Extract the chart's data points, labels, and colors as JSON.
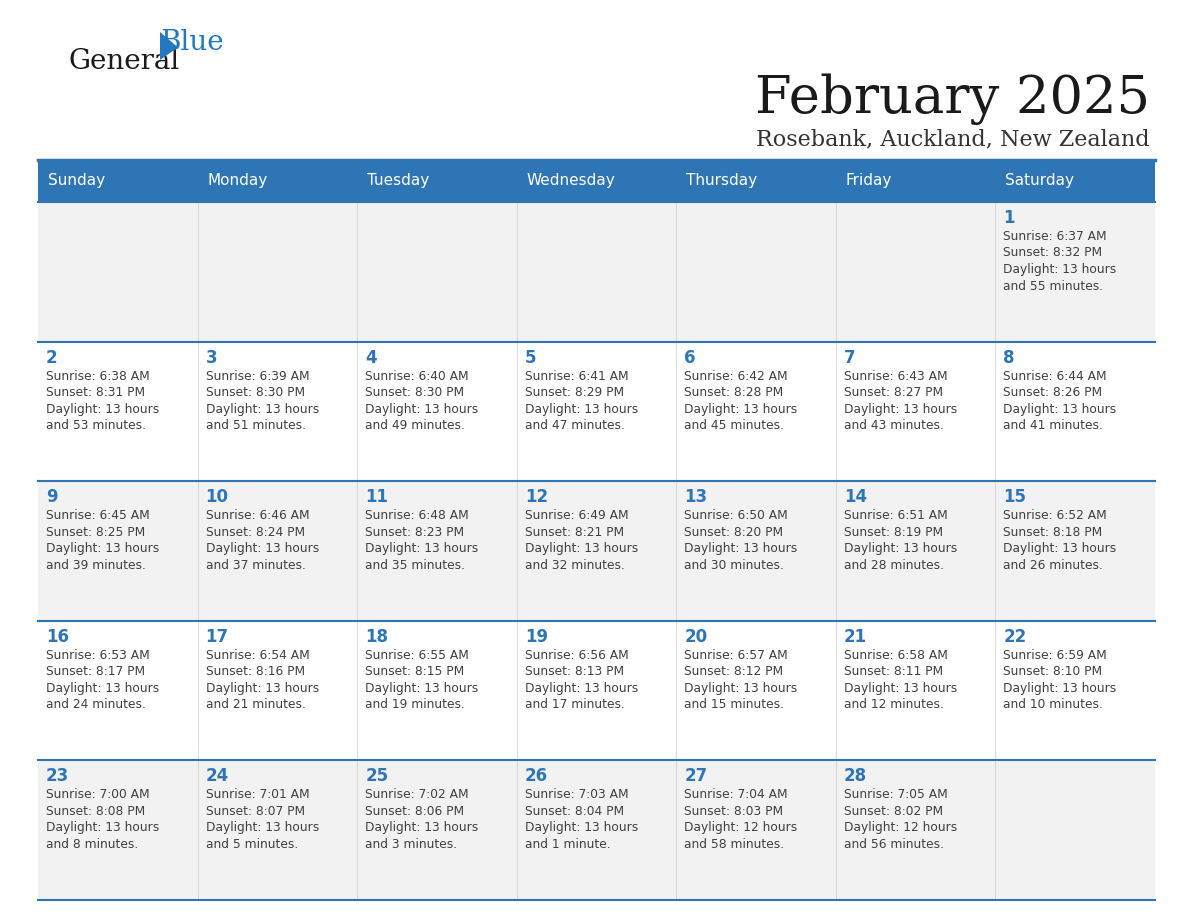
{
  "title": "February 2025",
  "subtitle": "Rosebank, Auckland, New Zealand",
  "header_bg": "#2E75B6",
  "header_text_color": "#FFFFFF",
  "cell_bg_odd": "#F2F2F2",
  "cell_bg_even": "#FFFFFF",
  "day_number_color": "#2E75B6",
  "text_color": "#404040",
  "line_color": "#2E75B6",
  "days_of_week": [
    "Sunday",
    "Monday",
    "Tuesday",
    "Wednesday",
    "Thursday",
    "Friday",
    "Saturday"
  ],
  "weeks": [
    [
      {
        "day": null,
        "sunrise": null,
        "sunset": null,
        "daylight_line1": null,
        "daylight_line2": null
      },
      {
        "day": null,
        "sunrise": null,
        "sunset": null,
        "daylight_line1": null,
        "daylight_line2": null
      },
      {
        "day": null,
        "sunrise": null,
        "sunset": null,
        "daylight_line1": null,
        "daylight_line2": null
      },
      {
        "day": null,
        "sunrise": null,
        "sunset": null,
        "daylight_line1": null,
        "daylight_line2": null
      },
      {
        "day": null,
        "sunrise": null,
        "sunset": null,
        "daylight_line1": null,
        "daylight_line2": null
      },
      {
        "day": null,
        "sunrise": null,
        "sunset": null,
        "daylight_line1": null,
        "daylight_line2": null
      },
      {
        "day": 1,
        "sunrise": "6:37 AM",
        "sunset": "8:32 PM",
        "daylight_line1": "Daylight: 13 hours",
        "daylight_line2": "and 55 minutes."
      }
    ],
    [
      {
        "day": 2,
        "sunrise": "6:38 AM",
        "sunset": "8:31 PM",
        "daylight_line1": "Daylight: 13 hours",
        "daylight_line2": "and 53 minutes."
      },
      {
        "day": 3,
        "sunrise": "6:39 AM",
        "sunset": "8:30 PM",
        "daylight_line1": "Daylight: 13 hours",
        "daylight_line2": "and 51 minutes."
      },
      {
        "day": 4,
        "sunrise": "6:40 AM",
        "sunset": "8:30 PM",
        "daylight_line1": "Daylight: 13 hours",
        "daylight_line2": "and 49 minutes."
      },
      {
        "day": 5,
        "sunrise": "6:41 AM",
        "sunset": "8:29 PM",
        "daylight_line1": "Daylight: 13 hours",
        "daylight_line2": "and 47 minutes."
      },
      {
        "day": 6,
        "sunrise": "6:42 AM",
        "sunset": "8:28 PM",
        "daylight_line1": "Daylight: 13 hours",
        "daylight_line2": "and 45 minutes."
      },
      {
        "day": 7,
        "sunrise": "6:43 AM",
        "sunset": "8:27 PM",
        "daylight_line1": "Daylight: 13 hours",
        "daylight_line2": "and 43 minutes."
      },
      {
        "day": 8,
        "sunrise": "6:44 AM",
        "sunset": "8:26 PM",
        "daylight_line1": "Daylight: 13 hours",
        "daylight_line2": "and 41 minutes."
      }
    ],
    [
      {
        "day": 9,
        "sunrise": "6:45 AM",
        "sunset": "8:25 PM",
        "daylight_line1": "Daylight: 13 hours",
        "daylight_line2": "and 39 minutes."
      },
      {
        "day": 10,
        "sunrise": "6:46 AM",
        "sunset": "8:24 PM",
        "daylight_line1": "Daylight: 13 hours",
        "daylight_line2": "and 37 minutes."
      },
      {
        "day": 11,
        "sunrise": "6:48 AM",
        "sunset": "8:23 PM",
        "daylight_line1": "Daylight: 13 hours",
        "daylight_line2": "and 35 minutes."
      },
      {
        "day": 12,
        "sunrise": "6:49 AM",
        "sunset": "8:21 PM",
        "daylight_line1": "Daylight: 13 hours",
        "daylight_line2": "and 32 minutes."
      },
      {
        "day": 13,
        "sunrise": "6:50 AM",
        "sunset": "8:20 PM",
        "daylight_line1": "Daylight: 13 hours",
        "daylight_line2": "and 30 minutes."
      },
      {
        "day": 14,
        "sunrise": "6:51 AM",
        "sunset": "8:19 PM",
        "daylight_line1": "Daylight: 13 hours",
        "daylight_line2": "and 28 minutes."
      },
      {
        "day": 15,
        "sunrise": "6:52 AM",
        "sunset": "8:18 PM",
        "daylight_line1": "Daylight: 13 hours",
        "daylight_line2": "and 26 minutes."
      }
    ],
    [
      {
        "day": 16,
        "sunrise": "6:53 AM",
        "sunset": "8:17 PM",
        "daylight_line1": "Daylight: 13 hours",
        "daylight_line2": "and 24 minutes."
      },
      {
        "day": 17,
        "sunrise": "6:54 AM",
        "sunset": "8:16 PM",
        "daylight_line1": "Daylight: 13 hours",
        "daylight_line2": "and 21 minutes."
      },
      {
        "day": 18,
        "sunrise": "6:55 AM",
        "sunset": "8:15 PM",
        "daylight_line1": "Daylight: 13 hours",
        "daylight_line2": "and 19 minutes."
      },
      {
        "day": 19,
        "sunrise": "6:56 AM",
        "sunset": "8:13 PM",
        "daylight_line1": "Daylight: 13 hours",
        "daylight_line2": "and 17 minutes."
      },
      {
        "day": 20,
        "sunrise": "6:57 AM",
        "sunset": "8:12 PM",
        "daylight_line1": "Daylight: 13 hours",
        "daylight_line2": "and 15 minutes."
      },
      {
        "day": 21,
        "sunrise": "6:58 AM",
        "sunset": "8:11 PM",
        "daylight_line1": "Daylight: 13 hours",
        "daylight_line2": "and 12 minutes."
      },
      {
        "day": 22,
        "sunrise": "6:59 AM",
        "sunset": "8:10 PM",
        "daylight_line1": "Daylight: 13 hours",
        "daylight_line2": "and 10 minutes."
      }
    ],
    [
      {
        "day": 23,
        "sunrise": "7:00 AM",
        "sunset": "8:08 PM",
        "daylight_line1": "Daylight: 13 hours",
        "daylight_line2": "and 8 minutes."
      },
      {
        "day": 24,
        "sunrise": "7:01 AM",
        "sunset": "8:07 PM",
        "daylight_line1": "Daylight: 13 hours",
        "daylight_line2": "and 5 minutes."
      },
      {
        "day": 25,
        "sunrise": "7:02 AM",
        "sunset": "8:06 PM",
        "daylight_line1": "Daylight: 13 hours",
        "daylight_line2": "and 3 minutes."
      },
      {
        "day": 26,
        "sunrise": "7:03 AM",
        "sunset": "8:04 PM",
        "daylight_line1": "Daylight: 13 hours",
        "daylight_line2": "and 1 minute."
      },
      {
        "day": 27,
        "sunrise": "7:04 AM",
        "sunset": "8:03 PM",
        "daylight_line1": "Daylight: 12 hours",
        "daylight_line2": "and 58 minutes."
      },
      {
        "day": 28,
        "sunrise": "7:05 AM",
        "sunset": "8:02 PM",
        "daylight_line1": "Daylight: 12 hours",
        "daylight_line2": "and 56 minutes."
      },
      {
        "day": null,
        "sunrise": null,
        "sunset": null,
        "daylight_line1": null,
        "daylight_line2": null
      }
    ]
  ],
  "logo_color_general": "#1A1A1A",
  "logo_color_blue": "#2479BE",
  "logo_triangle_color": "#2479BE"
}
